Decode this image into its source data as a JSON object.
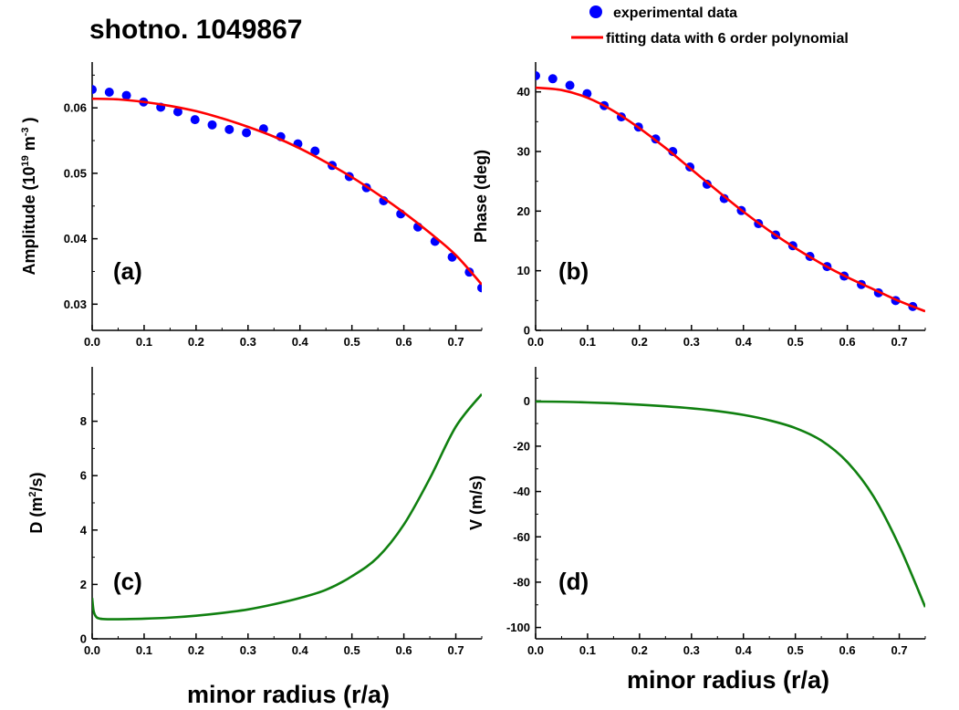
{
  "title": "shotno. 1049867",
  "legend": {
    "entries": [
      {
        "label": "experimental data",
        "kind": "marker",
        "color": "#0000ff"
      },
      {
        "label": "fitting data with 6 order polynomial",
        "kind": "line",
        "color": "#ff0000"
      }
    ]
  },
  "colors": {
    "experimental": "#0000ff",
    "fit": "#ff0000",
    "transport": "#108010",
    "axis": "#000000"
  },
  "chart_data": [
    {
      "type": "scatter",
      "panel_label": "(a)",
      "xlabel": "",
      "ylabel": "Amplitude (10",
      "ylabel_sup1": "19",
      "ylabel_mid": " m",
      "ylabel_sup2": "-3",
      "ylabel_end": " )",
      "xlim": [
        0.0,
        0.75
      ],
      "ylim": [
        0.026,
        0.067
      ],
      "xticks": [
        0.0,
        0.1,
        0.2,
        0.3,
        0.4,
        0.5,
        0.6,
        0.7
      ],
      "xtick_labels": [
        "0.0",
        "0.1",
        "0.2",
        "0.3",
        "0.4",
        "0.5",
        "0.6",
        "0.7"
      ],
      "yticks": [
        0.03,
        0.04,
        0.05,
        0.06
      ],
      "ytick_labels": [
        "0.03",
        "0.04",
        "0.05",
        "0.06"
      ],
      "series": [
        {
          "name": "experimental data",
          "kind": "points",
          "x": [
            0.0,
            0.033,
            0.066,
            0.099,
            0.132,
            0.165,
            0.198,
            0.231,
            0.264,
            0.297,
            0.33,
            0.363,
            0.396,
            0.429,
            0.462,
            0.495,
            0.528,
            0.561,
            0.594,
            0.627,
            0.66,
            0.693,
            0.726,
            0.75
          ],
          "y": [
            0.0628,
            0.0624,
            0.0619,
            0.0609,
            0.0601,
            0.0594,
            0.0582,
            0.0574,
            0.0567,
            0.0562,
            0.0568,
            0.0556,
            0.0545,
            0.0534,
            0.0512,
            0.0495,
            0.0478,
            0.0458,
            0.0438,
            0.0418,
            0.0396,
            0.0372,
            0.0349,
            0.0325
          ]
        },
        {
          "name": "fitting data with 6 order polynomial",
          "kind": "line",
          "x": [
            0.0,
            0.05,
            0.1,
            0.15,
            0.2,
            0.25,
            0.3,
            0.35,
            0.4,
            0.45,
            0.5,
            0.55,
            0.6,
            0.65,
            0.7,
            0.75
          ],
          "y": [
            0.0614,
            0.0613,
            0.0609,
            0.0603,
            0.0595,
            0.0584,
            0.0571,
            0.0556,
            0.0538,
            0.0517,
            0.0494,
            0.0468,
            0.044,
            0.0409,
            0.0375,
            0.033
          ]
        }
      ]
    },
    {
      "type": "scatter",
      "panel_label": "(b)",
      "xlabel": "",
      "ylabel": "Phase (deg)",
      "xlim": [
        0.0,
        0.75
      ],
      "ylim": [
        0,
        45
      ],
      "xticks": [
        0.0,
        0.1,
        0.2,
        0.3,
        0.4,
        0.5,
        0.6,
        0.7
      ],
      "xtick_labels": [
        "0.0",
        "0.1",
        "0.2",
        "0.3",
        "0.4",
        "0.5",
        "0.6",
        "0.7"
      ],
      "yticks": [
        0,
        10,
        20,
        30,
        40
      ],
      "ytick_labels": [
        "0",
        "10",
        "20",
        "30",
        "40"
      ],
      "series": [
        {
          "name": "experimental data",
          "kind": "points",
          "x": [
            0.0,
            0.033,
            0.066,
            0.099,
            0.132,
            0.165,
            0.198,
            0.231,
            0.264,
            0.297,
            0.33,
            0.363,
            0.396,
            0.429,
            0.462,
            0.495,
            0.528,
            0.561,
            0.594,
            0.627,
            0.66,
            0.693,
            0.726
          ],
          "y": [
            42.7,
            42.2,
            41.1,
            39.7,
            37.7,
            35.8,
            34.1,
            32.1,
            30.0,
            27.4,
            24.5,
            22.1,
            20.1,
            17.9,
            16.0,
            14.2,
            12.4,
            10.7,
            9.1,
            7.7,
            6.3,
            5.0,
            4.0
          ]
        },
        {
          "name": "fitting data with 6 order polynomial",
          "kind": "line",
          "x": [
            0.0,
            0.05,
            0.1,
            0.15,
            0.2,
            0.25,
            0.3,
            0.35,
            0.4,
            0.45,
            0.5,
            0.55,
            0.6,
            0.65,
            0.7,
            0.75
          ],
          "y": [
            40.7,
            40.3,
            39.0,
            36.8,
            33.9,
            30.6,
            27.0,
            23.4,
            19.9,
            16.7,
            13.8,
            11.2,
            8.9,
            6.9,
            4.9,
            3.2
          ]
        }
      ]
    },
    {
      "type": "line",
      "panel_label": "(c)",
      "xlabel": "minor radius (r/a)",
      "ylabel": "D (m",
      "ylabel_sup1": "2",
      "ylabel_end": "/s)",
      "xlim": [
        0.0,
        0.75
      ],
      "ylim": [
        0,
        10
      ],
      "xticks": [
        0.0,
        0.1,
        0.2,
        0.3,
        0.4,
        0.5,
        0.6,
        0.7
      ],
      "xtick_labels": [
        "0.0",
        "0.1",
        "0.2",
        "0.3",
        "0.4",
        "0.5",
        "0.6",
        "0.7"
      ],
      "yticks": [
        0,
        2,
        4,
        6,
        8
      ],
      "ytick_labels": [
        "0",
        "2",
        "4",
        "6",
        "8"
      ],
      "series": [
        {
          "kind": "line",
          "x": [
            0.0,
            0.003,
            0.008,
            0.015,
            0.03,
            0.05,
            0.1,
            0.15,
            0.2,
            0.25,
            0.3,
            0.35,
            0.4,
            0.45,
            0.5,
            0.55,
            0.6,
            0.65,
            0.7,
            0.75
          ],
          "y": [
            1.5,
            1.0,
            0.8,
            0.74,
            0.72,
            0.72,
            0.74,
            0.78,
            0.85,
            0.95,
            1.08,
            1.27,
            1.5,
            1.8,
            2.3,
            3.0,
            4.2,
            5.9,
            7.8,
            9.0
          ]
        }
      ]
    },
    {
      "type": "line",
      "panel_label": "(d)",
      "xlabel": "minor radius (r/a)",
      "ylabel": "V (m/s)",
      "xlim": [
        0.0,
        0.75
      ],
      "ylim": [
        -105,
        15
      ],
      "xticks": [
        0.0,
        0.1,
        0.2,
        0.3,
        0.4,
        0.5,
        0.6,
        0.7
      ],
      "xtick_labels": [
        "0.0",
        "0.1",
        "0.2",
        "0.3",
        "0.4",
        "0.5",
        "0.6",
        "0.7"
      ],
      "yticks": [
        -100,
        -80,
        -60,
        -40,
        -20,
        0
      ],
      "ytick_labels": [
        "-100",
        "-80",
        "-60",
        "-40",
        "-20",
        "0"
      ],
      "series": [
        {
          "kind": "line",
          "x": [
            0.0,
            0.05,
            0.1,
            0.15,
            0.2,
            0.25,
            0.3,
            0.35,
            0.4,
            0.45,
            0.5,
            0.55,
            0.6,
            0.65,
            0.7,
            0.75
          ],
          "y": [
            -0.3,
            -0.4,
            -0.7,
            -1.1,
            -1.7,
            -2.4,
            -3.3,
            -4.5,
            -6.2,
            -8.6,
            -12.0,
            -17.5,
            -27.0,
            -42.0,
            -64.0,
            -91.0
          ]
        }
      ]
    }
  ]
}
